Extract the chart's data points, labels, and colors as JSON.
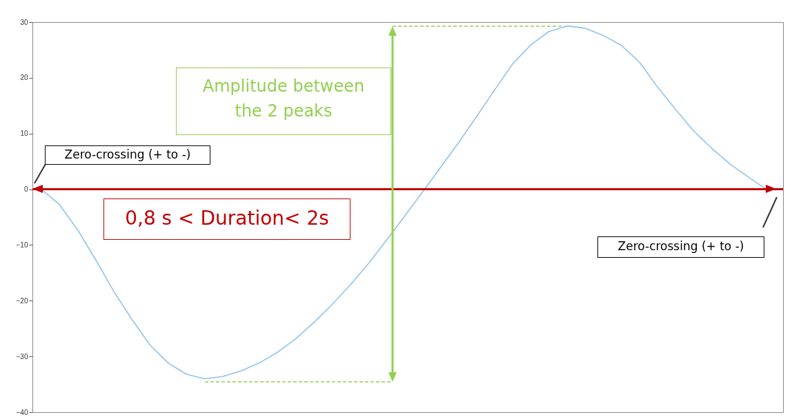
{
  "chart_data": {
    "type": "line",
    "categories": [
      null,
      null,
      null,
      null,
      null,
      null,
      null,
      null,
      null,
      null,
      null,
      null,
      null,
      null,
      null,
      null,
      null,
      null,
      null,
      null,
      null,
      null,
      null,
      null,
      null,
      null,
      null,
      null,
      null,
      null,
      null,
      null,
      null,
      null,
      null,
      null,
      null,
      null,
      null,
      null,
      null
    ],
    "series": [
      {
        "color": "#8fc3ea",
        "values": [
          0,
          -2.8,
          -7.3,
          -12.7,
          -18.4,
          -23.4,
          -28,
          -31.2,
          -33.2,
          -34,
          -33.6,
          -32.6,
          -31.2,
          -29.3,
          -26.9,
          -24,
          -20.8,
          -17.3,
          -13.5,
          -9.3,
          -5,
          -0.6,
          3.8,
          8.3,
          13,
          17.8,
          22.5,
          25.9,
          28.3,
          29.3,
          28.9,
          27.6,
          25.8,
          22.8,
          18.3,
          14.3,
          10.4,
          7.3,
          4.5,
          2.2,
          0
        ]
      }
    ],
    "ylim": [
      -40,
      30
    ],
    "yticks": [
      -40,
      -30,
      -20,
      -10,
      0,
      10,
      20,
      30
    ],
    "grid": false,
    "tick_labels": "y",
    "marker": "none",
    "line_style": "solid",
    "ref_lines": [
      {
        "axis": "y",
        "value": 0,
        "color": "#c00000"
      }
    ],
    "annotations": [
      "Zero-crossing (+ to -)",
      "0,8 s < Duration< 2s",
      "Amplitude between the 2 peaks",
      "Zero-crossing (+ to -)"
    ]
  }
}
